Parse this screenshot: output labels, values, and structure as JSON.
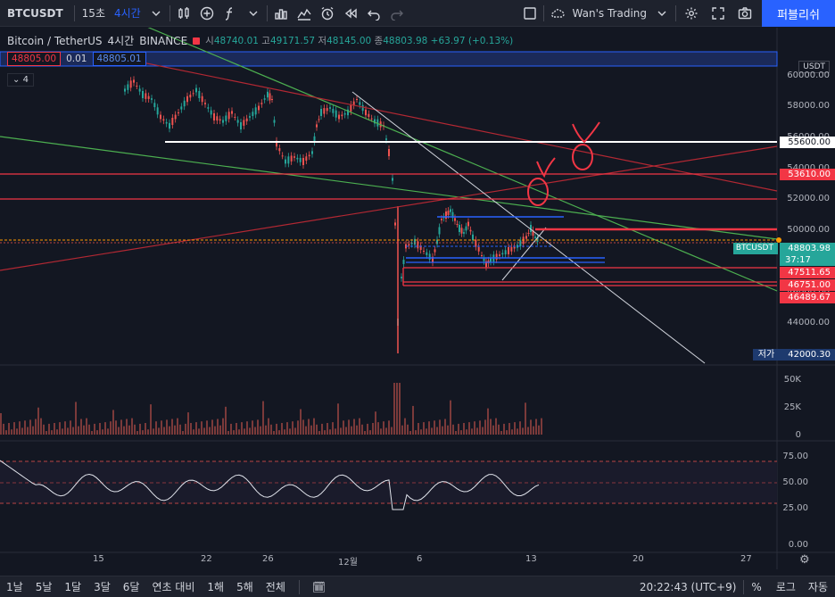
{
  "toolbar": {
    "symbol": "BTCUSDT",
    "interval_short": "15초",
    "interval_active": "4시간",
    "layout_name": "Wan's Trading",
    "publish_label": "퍼블리쉬"
  },
  "legend": {
    "title": "Bitcoin / TetherUS",
    "interval": "4시간",
    "exchange": "BINANCE",
    "open_label": "시",
    "open": "48740.01",
    "high_label": "고",
    "high": "49171.57",
    "low_label": "저",
    "low": "48145.00",
    "close_label": "종",
    "close": "48803.98",
    "change": "+63.97 (+0.13%)",
    "sell_price": "48805.00",
    "spread": "0.01",
    "buy_price": "48805.01",
    "indicator_count": "4"
  },
  "price_scale": {
    "currency": "USDT",
    "ticks": [
      "60000.00",
      "58000.00",
      "56000.00",
      "54000.00",
      "52000.00",
      "50000.00",
      "46000.00",
      "44000.00"
    ],
    "labels": {
      "level_55600": "55600.00",
      "level_53610": "53610.00",
      "symbol_tag": "BTCUSDT",
      "last_price": "48803.98",
      "countdown": "37:17",
      "level_47511": "47511.65",
      "level_46751": "46751.00",
      "level_46489": "46489.67",
      "low_label": "저가",
      "low_value": "42000.30"
    },
    "volume_ticks": [
      "50K",
      "25K",
      "0"
    ],
    "rsi_ticks": [
      "75.00",
      "50.00",
      "25.00",
      "0.00"
    ]
  },
  "time_axis": [
    "15",
    "22",
    "26",
    "12월",
    "6",
    "13",
    "20",
    "27"
  ],
  "bottom": {
    "ranges": [
      "1날",
      "5날",
      "1달",
      "3달",
      "6달",
      "연초 대비",
      "1해",
      "5해",
      "전체"
    ],
    "clock": "20:22:43 (UTC+9)",
    "percent": "%",
    "log": "로그",
    "auto": "자동"
  },
  "colors": {
    "bg": "#131722",
    "up": "#26a69a",
    "down": "#ef5350",
    "accent": "#2962ff",
    "hline_red": "#f23645",
    "trend_green": "#4caf50",
    "trend_red": "#b22833"
  }
}
